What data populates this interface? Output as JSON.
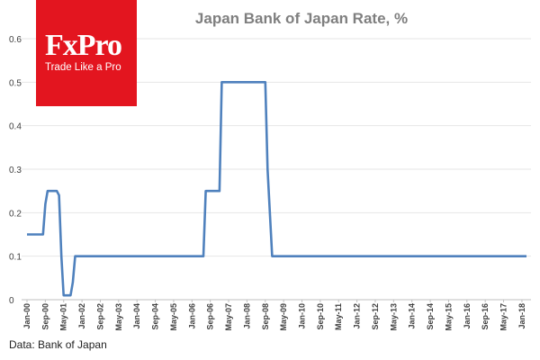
{
  "brand": {
    "name": "FxPro",
    "tagline": "Trade Like a Pro",
    "color": "#e3151f"
  },
  "source_note": "Data: Bank of Japan",
  "chart_data": {
    "type": "line",
    "title": "Japan Bank of Japan Rate, %",
    "xlabel": "",
    "ylabel": "",
    "ylim": [
      0,
      0.6
    ],
    "yticks": [
      0,
      0.1,
      0.2,
      0.3,
      0.4,
      0.5,
      0.6
    ],
    "ytick_labels": [
      "0",
      "0.1",
      "0.2",
      "0.3",
      "0.4",
      "0.5",
      "0.6"
    ],
    "x_tick_labels": [
      "Jan-00",
      "Sep-00",
      "May-01",
      "Jan-02",
      "Sep-02",
      "May-03",
      "Jan-04",
      "Sep-04",
      "May-05",
      "Jan-06",
      "Sep-06",
      "May-07",
      "Jan-08",
      "Sep-08",
      "May-09",
      "Jan-10",
      "Sep-10",
      "May-11",
      "Jan-12",
      "Sep-12",
      "May-13",
      "Jan-14",
      "Sep-14",
      "May-15",
      "Jan-16",
      "Sep-16",
      "May-17",
      "Jan-18"
    ],
    "grid": true,
    "line_color": "#4f81bd",
    "series": [
      {
        "name": "Bank of Japan Rate",
        "points": [
          [
            "Jan-00",
            0.15
          ],
          [
            "Aug-00",
            0.15
          ],
          [
            "Sep-00",
            0.22
          ],
          [
            "Oct-00",
            0.25
          ],
          [
            "Feb-01",
            0.25
          ],
          [
            "Mar-01",
            0.24
          ],
          [
            "Apr-01",
            0.1
          ],
          [
            "May-01",
            0.01
          ],
          [
            "Aug-01",
            0.01
          ],
          [
            "Sep-01",
            0.04
          ],
          [
            "Oct-01",
            0.1
          ],
          [
            "Jan-02",
            0.1
          ],
          [
            "Jun-06",
            0.1
          ],
          [
            "Jul-06",
            0.25
          ],
          [
            "Jan-07",
            0.25
          ],
          [
            "Feb-07",
            0.5
          ],
          [
            "Sep-08",
            0.5
          ],
          [
            "Oct-08",
            0.3
          ],
          [
            "Dec-08",
            0.1
          ],
          [
            "Mar-18",
            0.1
          ]
        ]
      }
    ]
  }
}
